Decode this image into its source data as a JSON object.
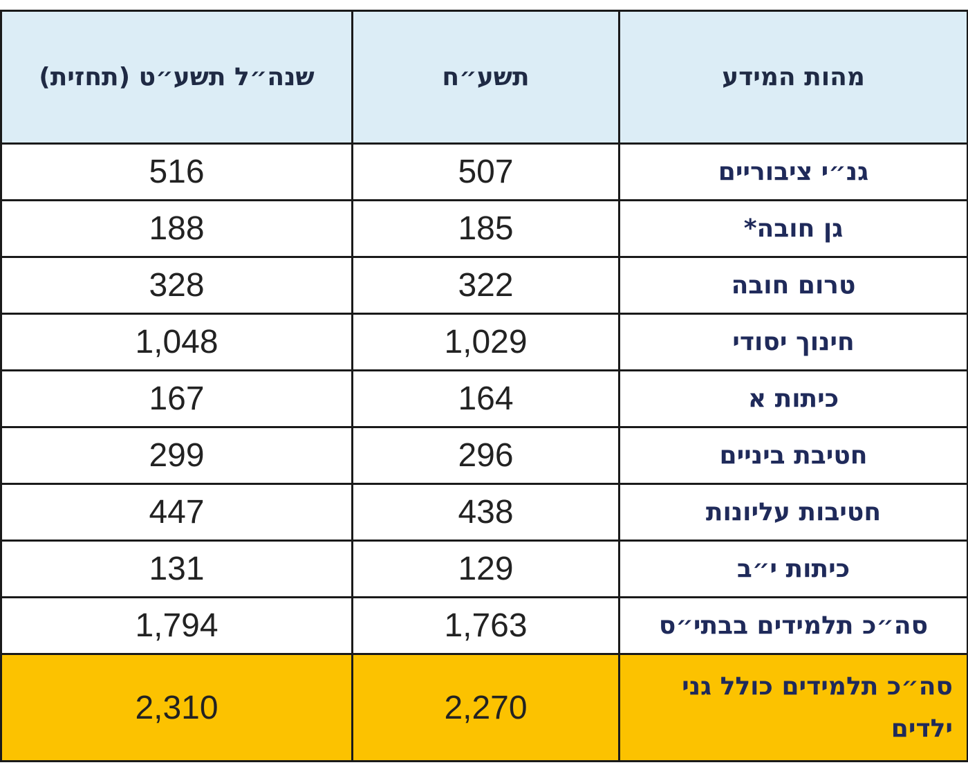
{
  "table": {
    "headers": {
      "label": "מהות המידע",
      "current": "תשע״ח",
      "forecast": "שנה״ל תשע״ט (תחזית)"
    },
    "rows": [
      {
        "label": "גנ״י ציבוריים",
        "current": "507",
        "forecast": "516"
      },
      {
        "label": "גן חובה*",
        "current": "185",
        "forecast": "188"
      },
      {
        "label": "טרום חובה",
        "current": "322",
        "forecast": "328"
      },
      {
        "label": "חינוך יסודי",
        "current": "1,029",
        "forecast": "1,048"
      },
      {
        "label": "כיתות א",
        "current": "164",
        "forecast": "167"
      },
      {
        "label": "חטיבת ביניים",
        "current": "296",
        "forecast": "299"
      },
      {
        "label": "חטיבות עליונות",
        "current": "438",
        "forecast": "447"
      },
      {
        "label": "כיתות י״ב",
        "current": "129",
        "forecast": "131"
      },
      {
        "label": "סה״כ תלמידים בבתי״ס",
        "current": "1,763",
        "forecast": "1,794"
      }
    ],
    "total": {
      "label": "סה״כ תלמידים כולל גני ילדים",
      "current": "2,270",
      "forecast": "2,310"
    }
  },
  "colors": {
    "header_bg": "#dcedf6",
    "total_bg": "#fcc200",
    "border": "#1a1a1a",
    "label_text": "#1f2a5a"
  }
}
